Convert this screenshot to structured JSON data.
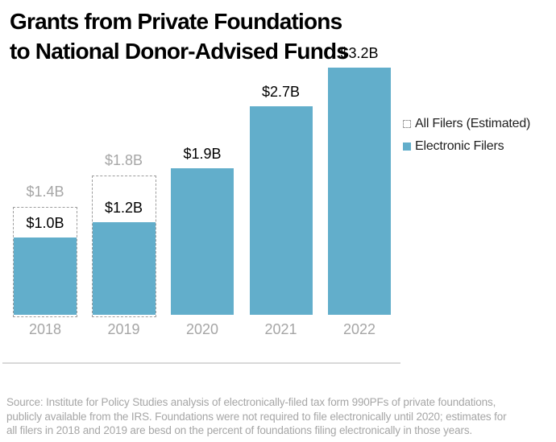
{
  "title": {
    "line1": "Grants from Private Foundations",
    "line2": "to National Donor-Advised Funds"
  },
  "legend": {
    "items": [
      {
        "label": "All Filers (Estimated)",
        "swatch": "dashed-outline"
      },
      {
        "label": "Electronic Filers",
        "swatch": "solid-blue"
      }
    ]
  },
  "colors": {
    "bar_blue": "#62AECB",
    "muted_gray": "#A6A6A6",
    "dash_gray": "#9E9E9E",
    "axis_line": "#D9D9D9",
    "label_black": "#000000"
  },
  "chart_data": {
    "type": "bar",
    "title": "Grants from Private Foundations to National Donor-Advised Funds",
    "categories": [
      "2018",
      "2019",
      "2020",
      "2021",
      "2022"
    ],
    "series": [
      {
        "name": "All Filers (Estimated)",
        "values": [
          1.4,
          1.8,
          null,
          null,
          null
        ],
        "style": "dashed-outline"
      },
      {
        "name": "Electronic Filers",
        "values": [
          1.0,
          1.2,
          1.9,
          2.7,
          3.2
        ],
        "style": "solid-blue"
      }
    ],
    "unit": "billions of USD",
    "ylim": [
      0,
      3.5
    ],
    "grid": false,
    "legend_position": "right",
    "bars": [
      {
        "year": "2018",
        "electronic": 1.0,
        "electronic_label": "$1.0B",
        "estimated": 1.4,
        "estimated_label": "$1.4B"
      },
      {
        "year": "2019",
        "electronic": 1.2,
        "electronic_label": "$1.2B",
        "estimated": 1.8,
        "estimated_label": "$1.8B"
      },
      {
        "year": "2020",
        "electronic": 1.9,
        "electronic_label": "$1.9B",
        "estimated": null,
        "estimated_label": null
      },
      {
        "year": "2021",
        "electronic": 2.7,
        "electronic_label": "$2.7B",
        "estimated": null,
        "estimated_label": null
      },
      {
        "year": "2022",
        "electronic": 3.2,
        "electronic_label": "$3.2B",
        "estimated": null,
        "estimated_label": null
      }
    ]
  },
  "source": {
    "lines": [
      "Source: Institute for Policy Studies analysis of electronically-filed tax form 990PFs of private foundations,",
      "publicly available from the IRS. Foundations were not required to file electronically until 2020; estimates for",
      "all filers in 2018 and 2019 are besd on the percent of foundations filing electronically in those years."
    ]
  }
}
